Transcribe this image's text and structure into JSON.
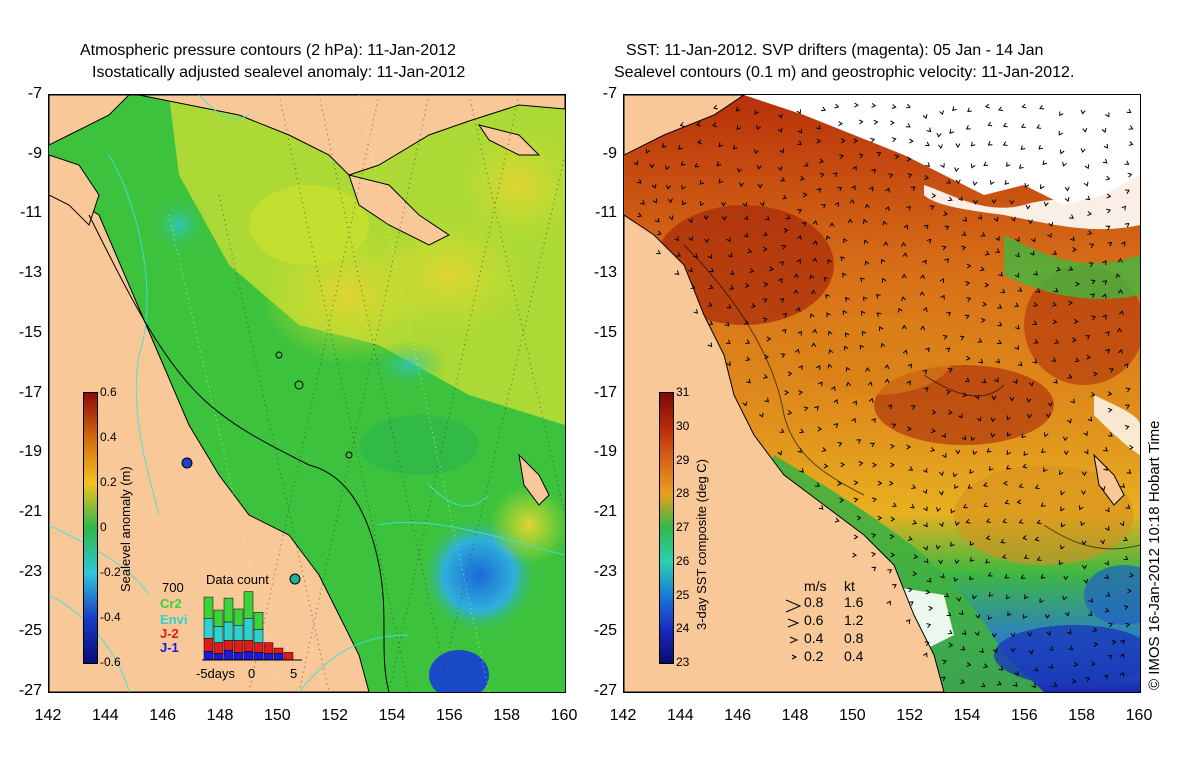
{
  "left_panel": {
    "title_line1": "Atmospheric pressure contours (2 hPa): 11-Jan-2012",
    "title_line2": "Isostatically adjusted sealevel anomaly: 11-Jan-2012",
    "colorbar": {
      "label": "Sealevel anomaly (m)",
      "ticks": [
        "0.6",
        "0.4",
        "0.2",
        "0",
        "-0.2",
        "-0.4",
        "-0.6"
      ],
      "colors": [
        "#8b0a0a",
        "#d46a10",
        "#f2c320",
        "#2fb84a",
        "#2fc6d9",
        "#1a3cc7",
        "#0a0a7a"
      ]
    },
    "data_count": {
      "title": "Data count",
      "max_label": "700",
      "x_labels": [
        "-5days",
        "0",
        "5"
      ],
      "legend": [
        {
          "name": "Cr2",
          "color": "#3cd23c"
        },
        {
          "name": "Envi",
          "color": "#2fd0d0"
        },
        {
          "name": "J-2",
          "color": "#e01a1a"
        },
        {
          "name": "J-1",
          "color": "#1a1ad8"
        }
      ],
      "bars": [
        {
          "day": -5,
          "J-1": 80,
          "J-2": 120,
          "Envi": 180,
          "Cr2": 200
        },
        {
          "day": -4,
          "J-1": 60,
          "J-2": 100,
          "Envi": 150,
          "Cr2": 150
        },
        {
          "day": -3,
          "J-1": 90,
          "J-2": 90,
          "Envi": 170,
          "Cr2": 220
        },
        {
          "day": -2,
          "J-1": 70,
          "J-2": 110,
          "Envi": 140,
          "Cr2": 150
        },
        {
          "day": -1,
          "J-1": 80,
          "J-2": 100,
          "Envi": 200,
          "Cr2": 250
        },
        {
          "day": 0,
          "J-1": 70,
          "J-2": 90,
          "Envi": 120,
          "Cr2": 160
        },
        {
          "day": 1,
          "J-1": 60,
          "J-2": 100,
          "Envi": 0,
          "Cr2": 0
        },
        {
          "day": 2,
          "J-1": 60,
          "J-2": 50,
          "Envi": 0,
          "Cr2": 0
        },
        {
          "day": 3,
          "J-1": 0,
          "J-2": 70,
          "Envi": 0,
          "Cr2": 0
        }
      ]
    }
  },
  "right_panel": {
    "title_line1": "SST: 11-Jan-2012. SVP drifters (magenta): 05 Jan - 14 Jan",
    "title_line2": "Sealevel contours (0.1 m) and geostrophic velocity: 11-Jan-2012.",
    "colorbar": {
      "label": "3-day SST composite (deg C)",
      "ticks": [
        "31",
        "30",
        "29",
        "28",
        "27",
        "26",
        "25",
        "24",
        "23"
      ],
      "colors": [
        "#7a0a0a",
        "#b8280a",
        "#d8661a",
        "#e8a020",
        "#2fb84a",
        "#2fd0b0",
        "#1a7ad8",
        "#1a2ac0",
        "#0a0a70"
      ]
    },
    "velocity_legend": {
      "header_ms": "m/s",
      "header_kt": "kt",
      "rows": [
        {
          "ms": "0.8",
          "kt": "1.6"
        },
        {
          "ms": "0.6",
          "kt": "1.2"
        },
        {
          "ms": "0.4",
          "kt": "0.8"
        },
        {
          "ms": "0.2",
          "kt": "0.4"
        }
      ]
    },
    "watermark": "© IMOS 16-Jan-2012 10:18 Hobart Time"
  },
  "axes": {
    "x_ticks": [
      "142",
      "144",
      "146",
      "148",
      "150",
      "152",
      "154",
      "156",
      "158",
      "160"
    ],
    "y_ticks": [
      "-7",
      "-9",
      "-11",
      "-13",
      "-15",
      "-17",
      "-19",
      "-21",
      "-23",
      "-25",
      "-27"
    ],
    "lon_range": [
      142,
      160
    ],
    "lat_range": [
      -27,
      -7
    ]
  },
  "colors": {
    "land": "#f8c898",
    "sla_green": "#3cc23c",
    "sla_yellow": "#c8e030",
    "sst_orange": "#e09020",
    "sst_red": "#b82a0a"
  }
}
